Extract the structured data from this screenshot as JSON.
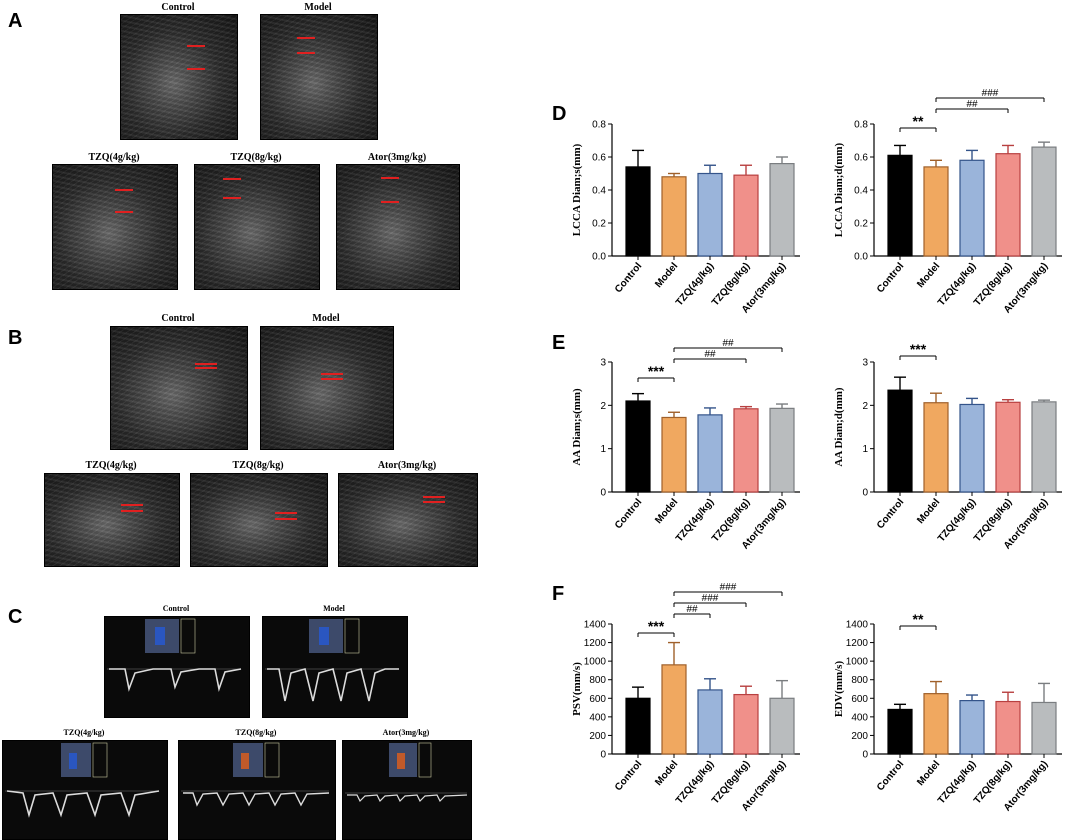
{
  "panels": {
    "A": "A",
    "B": "B",
    "C": "C",
    "D": "D",
    "E": "E",
    "F": "F"
  },
  "image_groups": {
    "A": [
      "Control",
      "Model",
      "TZQ(4g/kg)",
      "TZQ(8g/kg)",
      "Ator(3mg/kg)"
    ],
    "B": [
      "Control",
      "Model",
      "TZQ(4g/kg)",
      "TZQ(8g/kg)",
      "Ator(3mg/kg)"
    ],
    "C": [
      "Control",
      "Model",
      "TZQ(4g/kg)",
      "TZQ(8g/kg)",
      "Ator(3mg/kg)"
    ]
  },
  "colors": {
    "Control": "#000000",
    "Model": "#f0a860",
    "TZQ(4g/kg)": "#9ab4da",
    "TZQ(8g/kg)": "#f0908a",
    "Ator(3mg/kg)": "#b9bcbe",
    "edge_Model": "#a0602a",
    "edge_TZQ4": "#34548a",
    "edge_TZQ8": "#b84040",
    "edge_Ator": "#7a7d80"
  },
  "chart_data": [
    {
      "type": "bar",
      "panel": "D",
      "categories": [
        "Control",
        "Model",
        "TZQ(4g/kg)",
        "TZQ(8g/kg)",
        "Ator(3mg/kg)"
      ],
      "values": [
        0.54,
        0.48,
        0.5,
        0.49,
        0.56
      ],
      "errors": [
        0.1,
        0.02,
        0.05,
        0.06,
        0.04
      ],
      "ylabel": "LCCA Diam;s(mm)",
      "ylim": [
        0,
        0.8
      ],
      "yticks": [
        "0.0",
        "0.2",
        "0.4",
        "0.6",
        "0.8"
      ],
      "significance": []
    },
    {
      "type": "bar",
      "panel": "D",
      "categories": [
        "Control",
        "Model",
        "TZQ(4g/kg)",
        "TZQ(8g/kg)",
        "Ator(3mg/kg)"
      ],
      "values": [
        0.61,
        0.54,
        0.58,
        0.62,
        0.66
      ],
      "errors": [
        0.06,
        0.04,
        0.06,
        0.05,
        0.03
      ],
      "ylabel": "LCCA Diam;d(mm)",
      "ylim": [
        0,
        0.8
      ],
      "yticks": [
        "0.0",
        "0.2",
        "0.4",
        "0.6",
        "0.8"
      ],
      "significance": [
        {
          "from": 0,
          "to": 1,
          "label": "**"
        },
        {
          "from": 1,
          "to": 3,
          "label": "##"
        },
        {
          "from": 1,
          "to": 4,
          "label": "###"
        }
      ]
    },
    {
      "type": "bar",
      "panel": "E",
      "categories": [
        "Control",
        "Model",
        "TZQ(4g/kg)",
        "TZQ(8g/kg)",
        "Ator(3mg/kg)"
      ],
      "values": [
        2.1,
        1.72,
        1.78,
        1.92,
        1.93
      ],
      "errors": [
        0.17,
        0.12,
        0.16,
        0.05,
        0.1
      ],
      "ylabel": "AA Diam;s(mm)",
      "ylim": [
        0,
        3
      ],
      "yticks": [
        "0",
        "1",
        "2",
        "3"
      ],
      "significance": [
        {
          "from": 0,
          "to": 1,
          "label": "***"
        },
        {
          "from": 1,
          "to": 3,
          "label": "##"
        },
        {
          "from": 1,
          "to": 4,
          "label": "##"
        }
      ]
    },
    {
      "type": "bar",
      "panel": "E",
      "categories": [
        "Control",
        "Model",
        "TZQ(4g/kg)",
        "TZQ(8g/kg)",
        "Ator(3mg/kg)"
      ],
      "values": [
        2.35,
        2.06,
        2.02,
        2.07,
        2.08
      ],
      "errors": [
        0.3,
        0.22,
        0.14,
        0.06,
        0.04
      ],
      "ylabel": "AA Diam;d(mm)",
      "ylim": [
        0,
        3
      ],
      "yticks": [
        "0",
        "1",
        "2",
        "3"
      ],
      "significance": [
        {
          "from": 0,
          "to": 1,
          "label": "***"
        }
      ]
    },
    {
      "type": "bar",
      "panel": "F",
      "categories": [
        "Control",
        "Model",
        "TZQ(4g/kg)",
        "TZQ(8g/kg)",
        "Ator(3mg/kg)"
      ],
      "values": [
        600,
        960,
        690,
        640,
        600
      ],
      "errors": [
        120,
        240,
        120,
        90,
        190
      ],
      "ylabel": "PSV(mm/s)",
      "ylim": [
        0,
        1400
      ],
      "yticks": [
        "0",
        "200",
        "400",
        "600",
        "800",
        "1000",
        "1200",
        "1400"
      ],
      "significance": [
        {
          "from": 0,
          "to": 1,
          "label": "***"
        },
        {
          "from": 1,
          "to": 2,
          "label": "##"
        },
        {
          "from": 1,
          "to": 3,
          "label": "###"
        },
        {
          "from": 1,
          "to": 4,
          "label": "###"
        }
      ]
    },
    {
      "type": "bar",
      "panel": "F",
      "categories": [
        "Control",
        "Model",
        "TZQ(4g/kg)",
        "TZQ(8g/kg)",
        "Ator(3mg/kg)"
      ],
      "values": [
        480,
        650,
        575,
        565,
        555
      ],
      "errors": [
        55,
        130,
        60,
        100,
        205
      ],
      "ylabel": "EDV(mm/s)",
      "ylim": [
        0,
        1400
      ],
      "yticks": [
        "0",
        "200",
        "400",
        "600",
        "800",
        "1000",
        "1200",
        "1400"
      ],
      "significance": [
        {
          "from": 0,
          "to": 1,
          "label": "**"
        }
      ]
    }
  ]
}
